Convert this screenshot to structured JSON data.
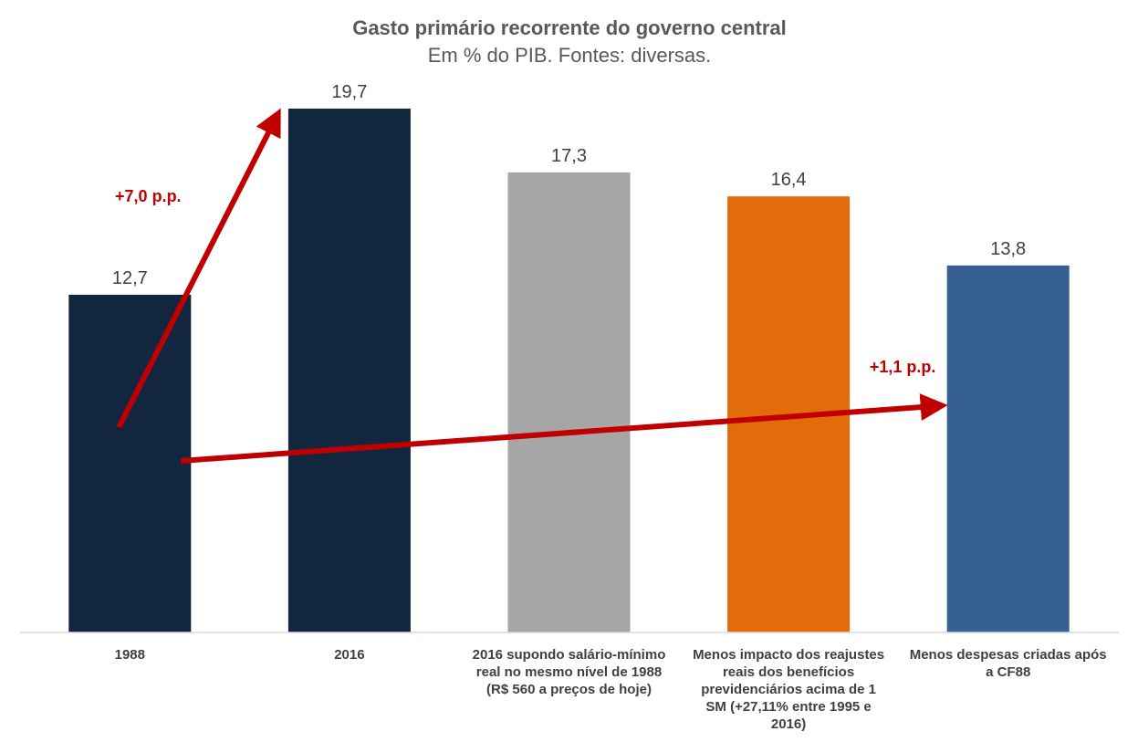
{
  "chart_data": {
    "type": "bar",
    "title": "Gasto primário recorrente do governo central",
    "subtitle": "Em % do PIB. Fontes: diversas.",
    "xlabel": "",
    "ylabel": "",
    "ylim": [
      0,
      19.7
    ],
    "grid": false,
    "legend": "none",
    "categories": [
      [
        "1988"
      ],
      [
        "2016"
      ],
      [
        "2016 supondo salário-mínimo",
        "real no mesmo nível de 1988",
        "(R$ 560 a preços de hoje)"
      ],
      [
        "Menos impacto dos reajustes",
        "reais dos benefícios",
        "previdenciários acima de 1",
        "SM (+27,11% entre 1995 e",
        "2016)"
      ],
      [
        "Menos despesas criadas após",
        "a CF88"
      ]
    ],
    "values": [
      12.7,
      19.7,
      17.3,
      16.4,
      13.8
    ],
    "value_labels": [
      "12,7",
      "19,7",
      "17,3",
      "16,4",
      "13,8"
    ],
    "bar_colors": [
      "#132640",
      "#132640",
      "#A6A6A6",
      "#E36C0A",
      "#376092"
    ],
    "annotations": [
      {
        "text": "+7,0 p.p.",
        "from_category": 0,
        "to_category": 1,
        "color": "#C00000"
      },
      {
        "text": "+1,1 p.p.",
        "from_category": 0,
        "to_category": 4,
        "color": "#C00000"
      }
    ]
  }
}
